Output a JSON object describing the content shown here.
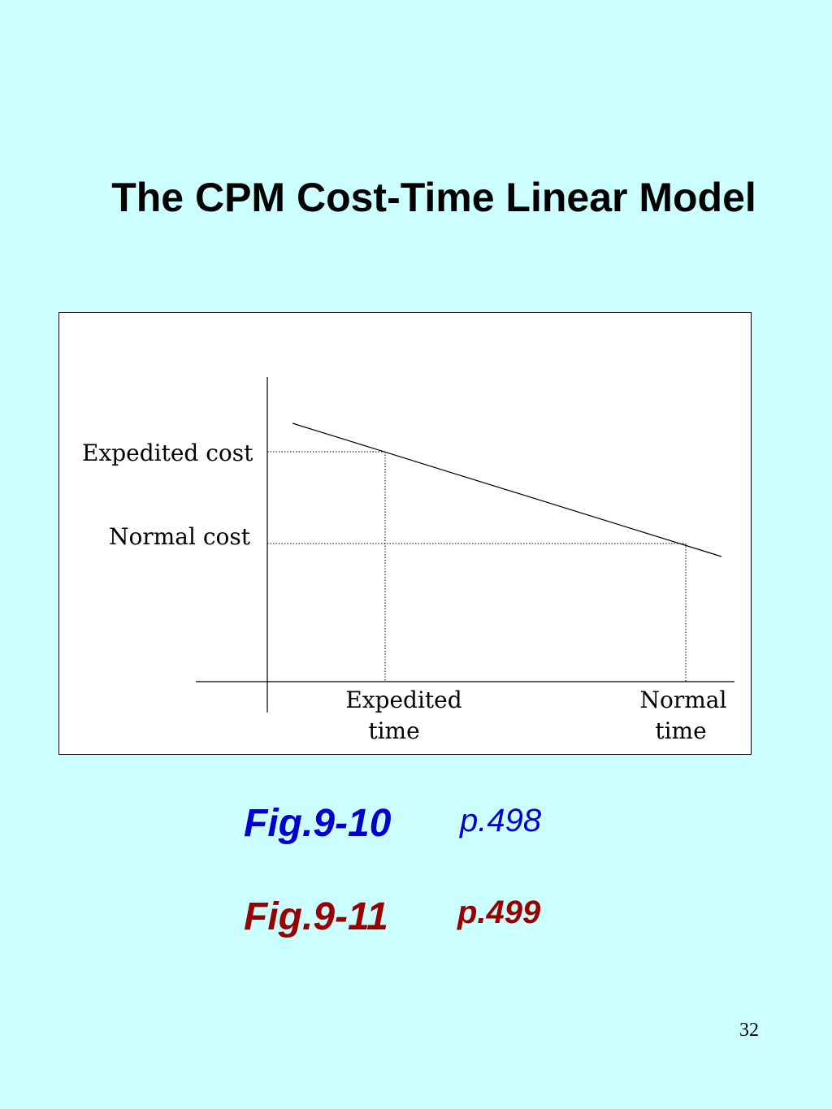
{
  "slide": {
    "title": "The CPM Cost-Time Linear Model",
    "page_number": "32",
    "background_color": "#ccffff"
  },
  "diagram": {
    "labels": {
      "expedited_cost": "Expedited cost",
      "normal_cost": "Normal cost",
      "expedited_time_line1": "Expedited",
      "expedited_time_line2": "time",
      "normal_time_line1": "Normal",
      "normal_time_line2": "time"
    }
  },
  "references": [
    {
      "figure": "Fig.9-10",
      "page": "p.498",
      "color": "#0000cc"
    },
    {
      "figure": "Fig.9-11",
      "page": "p.499",
      "color": "#990000"
    }
  ]
}
